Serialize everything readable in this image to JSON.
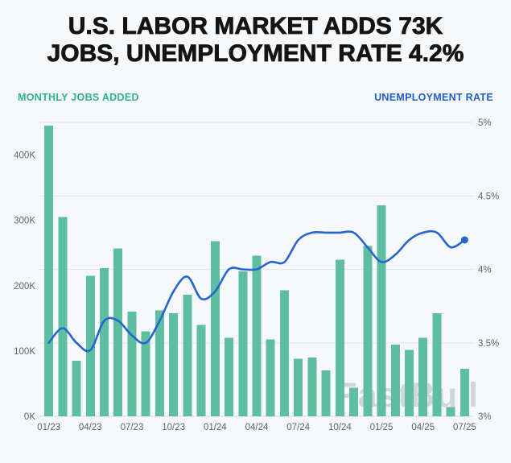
{
  "header": {
    "title_line1": "U.S. LABOR MARKET ADDS 73K",
    "title_line2": "JOBS, UNEMPLOYMENT RATE 4.2%"
  },
  "axis_titles": {
    "left": "MONTHLY JOBS ADDED",
    "right": "UNEMPLOYMENT RATE"
  },
  "watermark": "FastBull",
  "colors": {
    "background": "#f6f8fa",
    "title_text": "#141414",
    "left_title": "#2bb58b",
    "right_title": "#1e5fd0",
    "bar": "#5dbf9f",
    "line": "#2565d2",
    "grid": "#e3e7eb",
    "baseline": "#d2d8dd",
    "tick_text": "#5c6670"
  },
  "chart_data": {
    "type": "combo-bar-line",
    "title": "U.S. LABOR MARKET ADDS 73K JOBS, UNEMPLOYMENT RATE 4.2%",
    "categories": [
      "01/23",
      "02/23",
      "03/23",
      "04/23",
      "05/23",
      "06/23",
      "07/23",
      "08/23",
      "09/23",
      "10/23",
      "11/23",
      "12/23",
      "01/24",
      "02/24",
      "03/24",
      "04/24",
      "05/24",
      "06/24",
      "07/24",
      "08/24",
      "09/24",
      "10/24",
      "11/24",
      "12/24",
      "01/25",
      "02/25",
      "03/25",
      "04/25",
      "05/25",
      "06/25",
      "07/25"
    ],
    "series": [
      {
        "name": "Monthly Jobs Added",
        "type": "bar",
        "unit": "thousands",
        "values": [
          445,
          305,
          85,
          215,
          227,
          257,
          160,
          130,
          162,
          158,
          186,
          140,
          268,
          120,
          222,
          246,
          118,
          193,
          88,
          90,
          70,
          240,
          44,
          261,
          323,
          110,
          102,
          120,
          158,
          14,
          73
        ]
      },
      {
        "name": "Unemployment Rate",
        "type": "line",
        "unit": "%",
        "values": [
          3.5,
          3.6,
          3.5,
          3.45,
          3.65,
          3.65,
          3.55,
          3.5,
          3.65,
          3.85,
          3.95,
          3.8,
          3.85,
          4.0,
          4.0,
          4.0,
          4.05,
          4.05,
          4.2,
          4.25,
          4.25,
          4.25,
          4.25,
          4.15,
          4.05,
          4.1,
          4.2,
          4.25,
          4.25,
          4.15,
          4.2
        ]
      }
    ],
    "left_axis": {
      "min": 0,
      "max": 450,
      "unit": "K",
      "ticks": [
        {
          "value": 0,
          "label": "0K"
        },
        {
          "value": 100,
          "label": "100K"
        },
        {
          "value": 200,
          "label": "200K"
        },
        {
          "value": 300,
          "label": "300K"
        },
        {
          "value": 400,
          "label": "400K"
        }
      ]
    },
    "right_axis": {
      "min": 3,
      "max": 5,
      "unit": "%",
      "ticks": [
        {
          "value": 3,
          "label": "3%"
        },
        {
          "value": 3.5,
          "label": "3.5%"
        },
        {
          "value": 4,
          "label": "4%"
        },
        {
          "value": 4.5,
          "label": "4.5%"
        },
        {
          "value": 5,
          "label": "5%"
        }
      ]
    },
    "x_tick_interval": 3,
    "grid": "horizontal",
    "legend_position": "none",
    "end_point_marker": true
  }
}
